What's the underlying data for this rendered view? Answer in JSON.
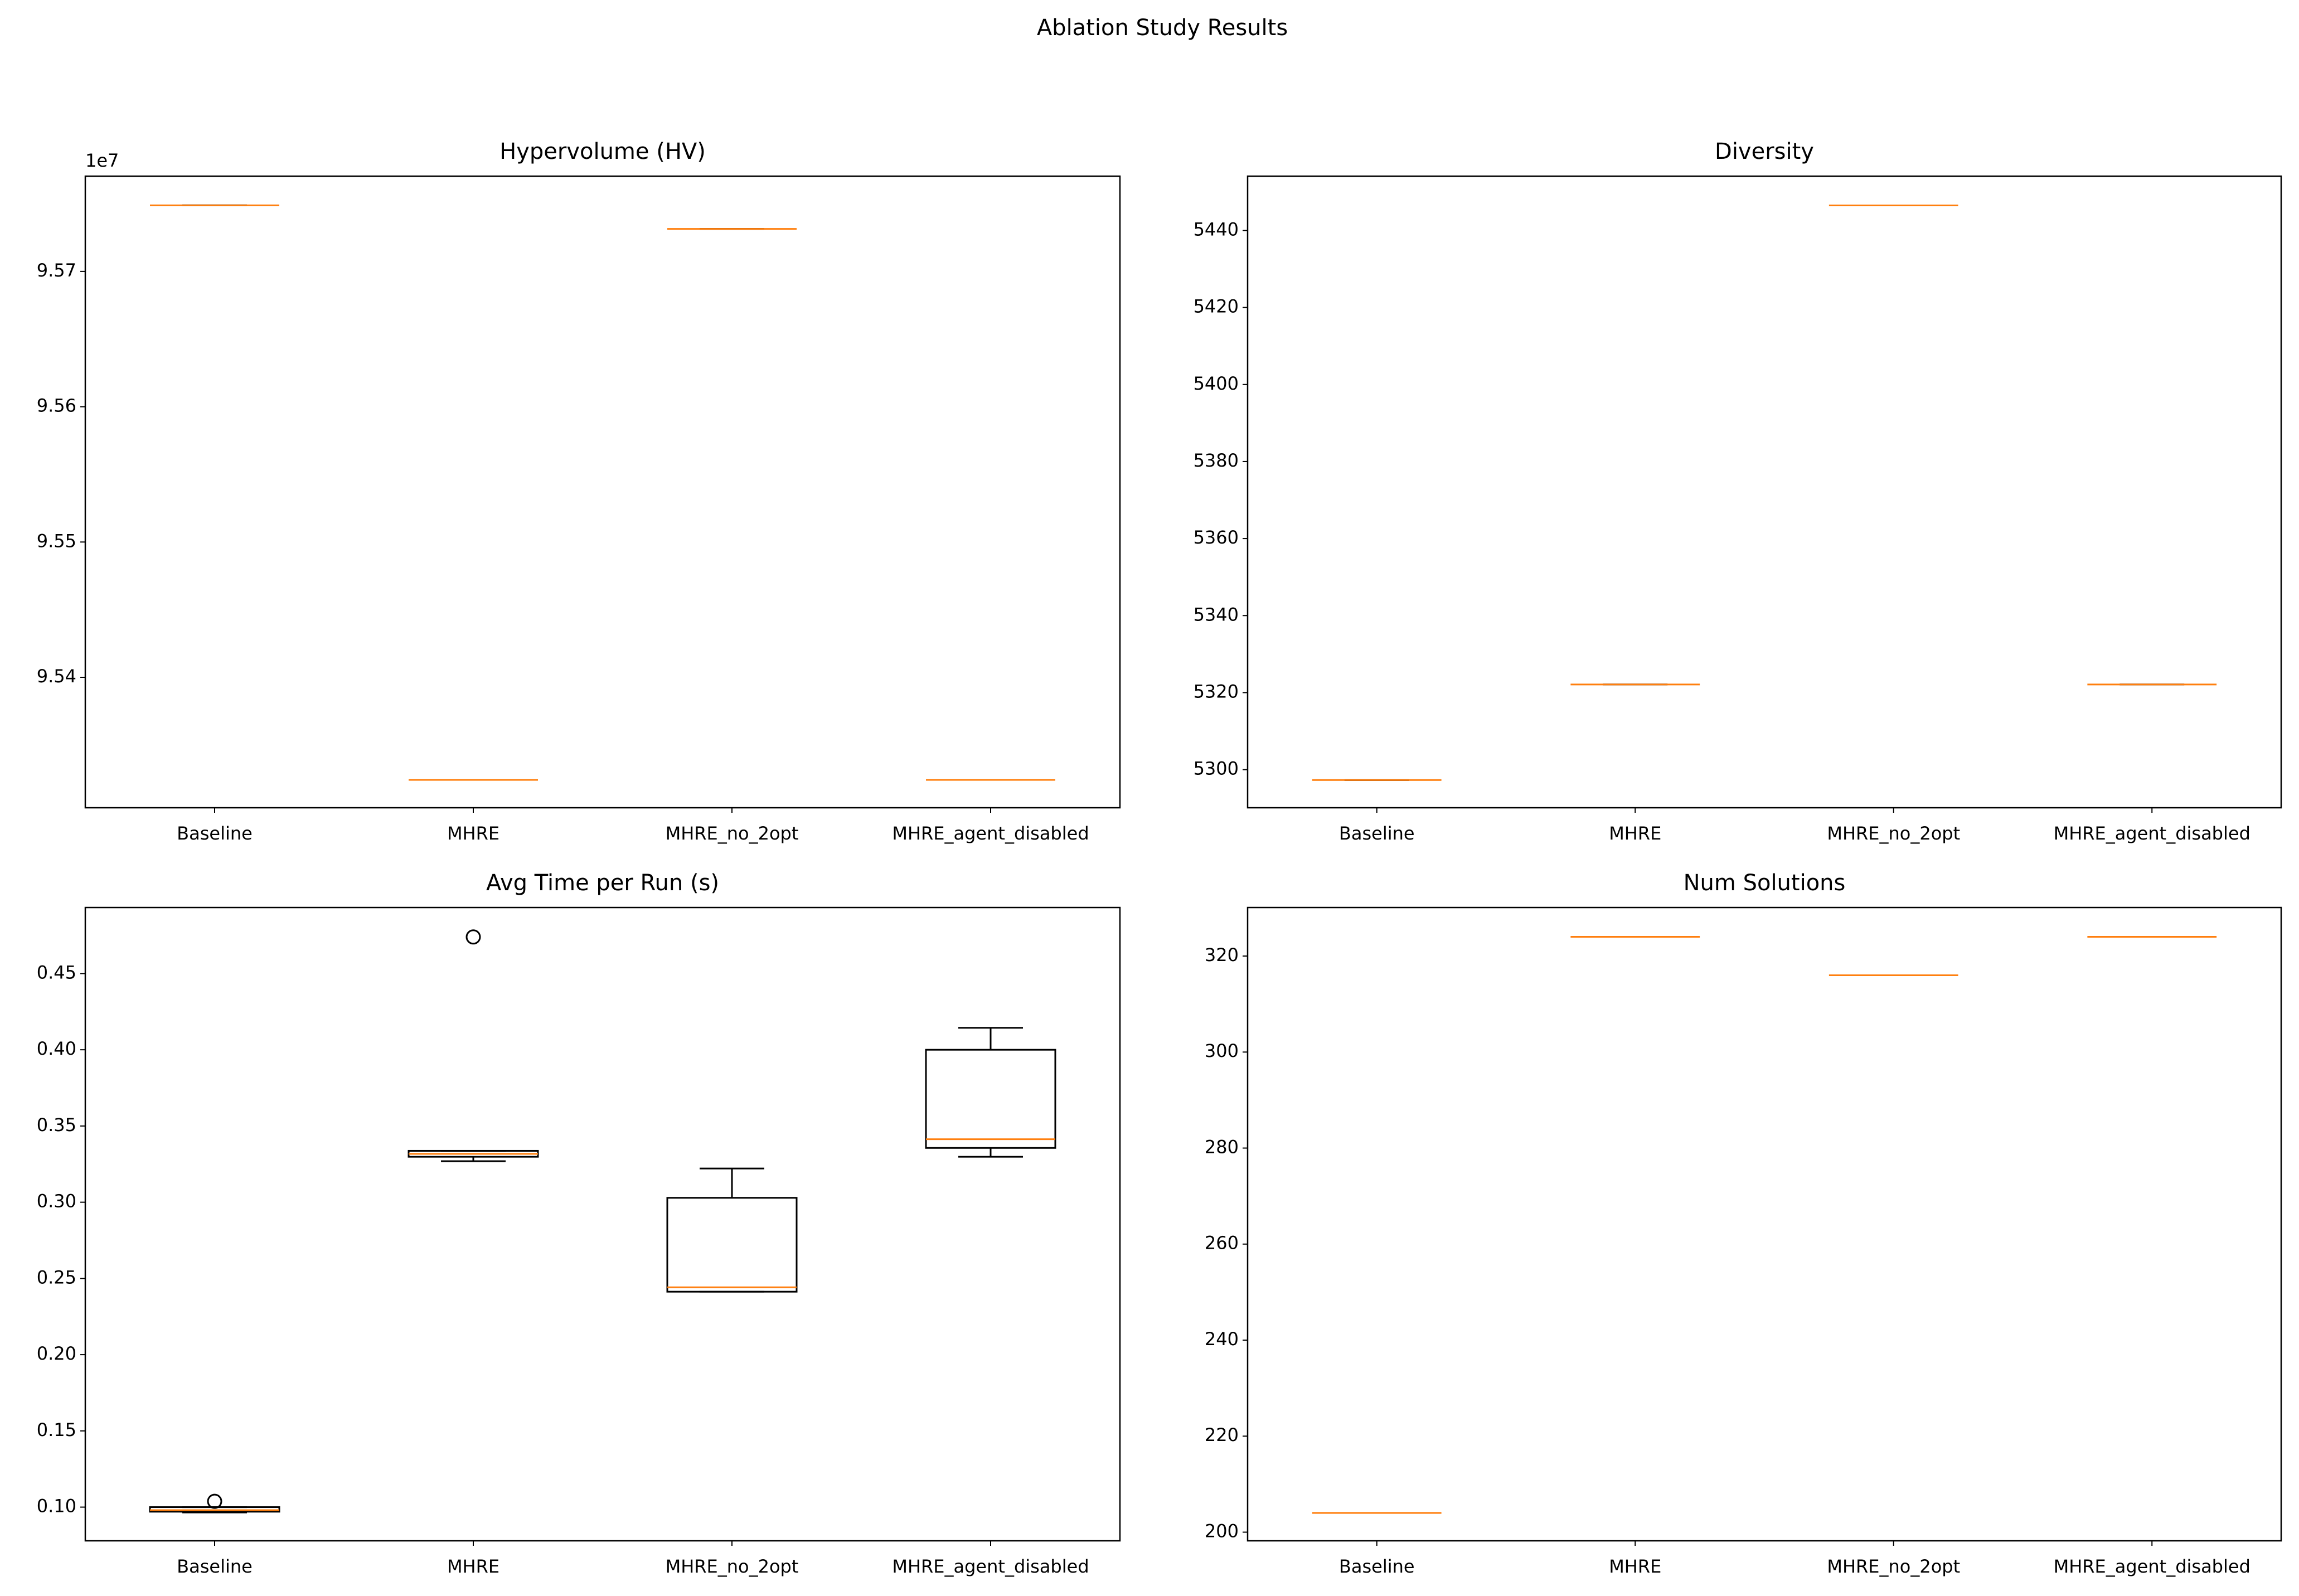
{
  "title": "Ablation Study Results",
  "chart_data": [
    {
      "type": "box",
      "title": "Hypervolume (HV)",
      "offset_text": "1e7",
      "categories": [
        "Baseline",
        "MHRE",
        "MHRE_no_2opt",
        "MHRE_agent_disabled"
      ],
      "box_color": "#000000",
      "median_color": "#ff7f0e",
      "boxes": [
        {
          "whislo": 95748800,
          "q1": 95748800,
          "med": 95748800,
          "q3": 95748800,
          "whishi": 95748800,
          "fliers": []
        },
        {
          "whislo": 95324200,
          "q1": 95324200,
          "med": 95324200,
          "q3": 95324200,
          "whishi": 95324200,
          "fliers": []
        },
        {
          "whislo": 95731400,
          "q1": 95731400,
          "med": 95731400,
          "q3": 95731400,
          "whishi": 95731400,
          "fliers": []
        },
        {
          "whislo": 95324200,
          "q1": 95324200,
          "med": 95324200,
          "q3": 95324200,
          "whishi": 95324200,
          "fliers": []
        }
      ],
      "ylim": [
        95303600,
        95770400
      ],
      "yticks": [
        {
          "value": 95400000,
          "label": "9.54"
        },
        {
          "value": 95500000,
          "label": "9.55"
        },
        {
          "value": 95600000,
          "label": "9.56"
        },
        {
          "value": 95700000,
          "label": "9.57"
        }
      ]
    },
    {
      "type": "box",
      "title": "Diversity",
      "categories": [
        "Baseline",
        "MHRE",
        "MHRE_no_2opt",
        "MHRE_agent_disabled"
      ],
      "box_color": "#000000",
      "median_color": "#ff7f0e",
      "boxes": [
        {
          "whislo": 5297.3,
          "q1": 5297.3,
          "med": 5297.3,
          "q3": 5297.3,
          "whishi": 5297.3,
          "fliers": []
        },
        {
          "whislo": 5322.1,
          "q1": 5322.1,
          "med": 5322.1,
          "q3": 5322.1,
          "whishi": 5322.1,
          "fliers": []
        },
        {
          "whislo": 5446.5,
          "q1": 5446.5,
          "med": 5446.5,
          "q3": 5446.5,
          "whishi": 5446.5,
          "fliers": []
        },
        {
          "whislo": 5322.1,
          "q1": 5322.1,
          "med": 5322.1,
          "q3": 5322.1,
          "whishi": 5322.1,
          "fliers": []
        }
      ],
      "ylim": [
        5290.1,
        5454.1
      ],
      "yticks": [
        5300,
        5320,
        5340,
        5360,
        5380,
        5400,
        5420,
        5440
      ]
    },
    {
      "type": "box",
      "title": "Avg Time per Run (s)",
      "categories": [
        "Baseline",
        "MHRE",
        "MHRE_no_2opt",
        "MHRE_agent_disabled"
      ],
      "box_color": "#000000",
      "median_color": "#ff7f0e",
      "boxes": [
        {
          "whislo": 0.0965,
          "q1": 0.097,
          "med": 0.098,
          "q3": 0.1,
          "whishi": 0.1,
          "fliers": [
            0.1038
          ]
        },
        {
          "whislo": 0.3269,
          "q1": 0.3298,
          "med": 0.3317,
          "q3": 0.3337,
          "whishi": 0.3337,
          "fliers": [
            0.474
          ]
        },
        {
          "whislo": 0.2413,
          "q1": 0.2413,
          "med": 0.2442,
          "q3": 0.3029,
          "whishi": 0.3221,
          "fliers": []
        },
        {
          "whislo": 0.3298,
          "q1": 0.3356,
          "med": 0.3413,
          "q3": 0.4,
          "whishi": 0.4144,
          "fliers": []
        }
      ],
      "ylim": [
        0.0779,
        0.4933
      ],
      "yticks": [
        {
          "value": 0.1,
          "label": "0.10"
        },
        0.15,
        {
          "value": 0.2,
          "label": "0.20"
        },
        0.25,
        {
          "value": 0.3,
          "label": "0.30"
        },
        0.35,
        {
          "value": 0.4,
          "label": "0.40"
        },
        0.45
      ]
    },
    {
      "type": "box",
      "title": "Num Solutions",
      "categories": [
        "Baseline",
        "MHRE",
        "MHRE_no_2opt",
        "MHRE_agent_disabled"
      ],
      "box_color": "#000000",
      "median_color": "#ff7f0e",
      "boxes": [
        {
          "whislo": 204,
          "q1": 204,
          "med": 204,
          "q3": 204,
          "whishi": 204,
          "fliers": []
        },
        {
          "whislo": 324,
          "q1": 324,
          "med": 324,
          "q3": 324,
          "whishi": 324,
          "fliers": []
        },
        {
          "whislo": 316,
          "q1": 316,
          "med": 316,
          "q3": 316,
          "whishi": 316,
          "fliers": []
        },
        {
          "whislo": 324,
          "q1": 324,
          "med": 324,
          "q3": 324,
          "whishi": 324,
          "fliers": []
        }
      ],
      "ylim": [
        198.2,
        330.1
      ],
      "yticks": [
        200,
        220,
        240,
        260,
        280,
        300,
        320
      ]
    }
  ]
}
